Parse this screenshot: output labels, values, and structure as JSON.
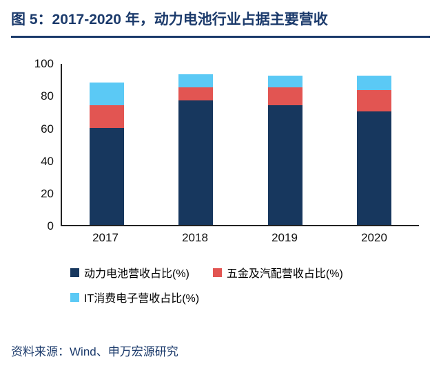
{
  "page": {
    "title": "图 5：2017-2020 年，动力电池行业占据主要营收",
    "source": "资料来源：Wind、申万宏源研究"
  },
  "colors": {
    "title_navy": "#1B3A6B",
    "axis_line": "#222222",
    "series_power_battery": "#17375E",
    "series_hardware_auto": "#E25552",
    "series_it_consumer": "#5BC9F5"
  },
  "chart_data": {
    "type": "bar",
    "stacked": true,
    "title": "图 5：2017-2020 年，动力电池行业占据主要营收",
    "categories": [
      "2017",
      "2018",
      "2019",
      "2020"
    ],
    "series": [
      {
        "name": "动力电池营收占比(%)",
        "color": "#17375E",
        "values": [
          60,
          77,
          74,
          70
        ]
      },
      {
        "name": "五金及汽配营收占比(%)",
        "color": "#E25552",
        "values": [
          14,
          8,
          11,
          13
        ]
      },
      {
        "name": "IT消费电子营收占比(%)",
        "color": "#5BC9F5",
        "values": [
          14,
          8,
          7,
          9
        ]
      }
    ],
    "xlabel": "",
    "ylabel": "",
    "ylim": [
      0,
      100
    ],
    "yticks": [
      0,
      20,
      40,
      60,
      80,
      100
    ],
    "grid": false,
    "legend_position": "bottom"
  }
}
